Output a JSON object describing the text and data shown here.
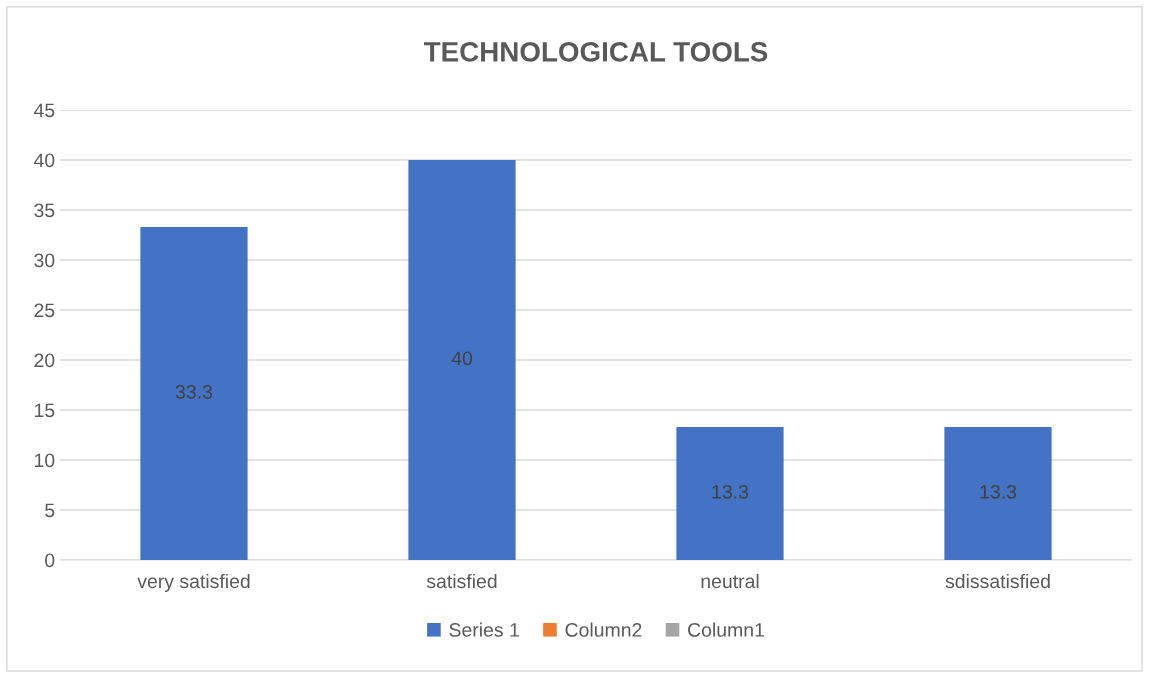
{
  "chart_data": {
    "type": "bar",
    "title": "TECHNOLOGICAL TOOLS",
    "categories": [
      "very satisfied",
      "satisfied",
      "neutral",
      "sdissatisfied"
    ],
    "series": [
      {
        "name": "Series 1",
        "color": "#4472c4",
        "values": [
          33.3,
          40,
          13.3,
          13.3
        ]
      },
      {
        "name": "Column2",
        "color": "#ed7d31",
        "values": [
          null,
          null,
          null,
          null
        ]
      },
      {
        "name": "Column1",
        "color": "#a5a5a5",
        "values": [
          null,
          null,
          null,
          null
        ]
      }
    ],
    "ylim": [
      0,
      45
    ],
    "yticks": [
      0,
      5,
      10,
      15,
      20,
      25,
      30,
      35,
      40,
      45
    ],
    "grid": "y",
    "legend": "bottom",
    "data_labels": true
  }
}
